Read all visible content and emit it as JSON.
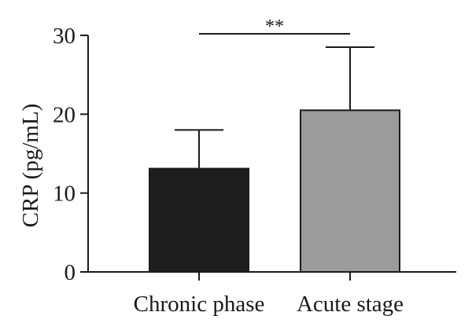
{
  "chart_data": {
    "type": "bar",
    "categories": [
      "Chronic phase",
      "Acute stage"
    ],
    "series": [
      {
        "values": [
          13.1,
          20.5
        ],
        "error_upper": [
          18.0,
          28.5
        ],
        "colors": [
          "#1e1e1e",
          "#9b9b9b"
        ]
      }
    ],
    "xlabel": "",
    "ylabel": "CRP (pg/mL)",
    "ylim": [
      0,
      30
    ],
    "yticks": [
      "0",
      "10",
      "20",
      "30"
    ],
    "ytick_values": [
      0,
      10,
      20,
      30
    ],
    "significance": {
      "between": [
        "Chronic phase",
        "Acute stage"
      ],
      "label": "**",
      "level": 30
    },
    "grid": false,
    "legend": "none"
  }
}
